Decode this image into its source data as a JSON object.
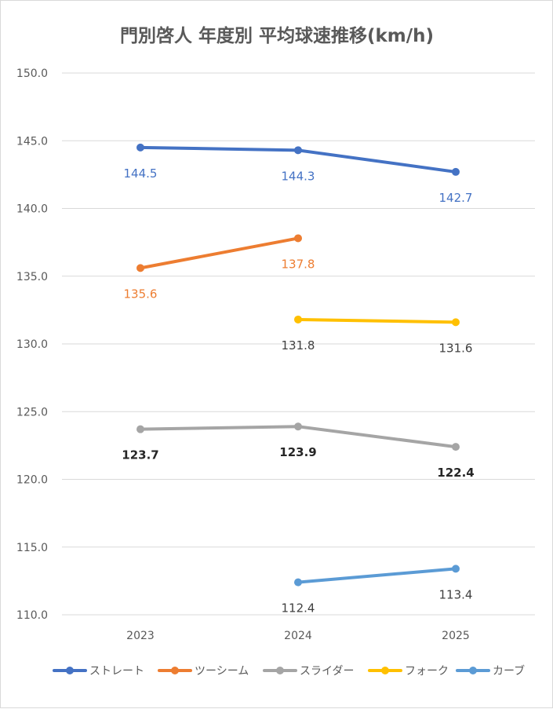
{
  "chart_data": {
    "type": "line",
    "title": "門別啓人 年度別 平均球速推移(km/h)",
    "x": [
      "2023",
      "2024",
      "2025"
    ],
    "ylim": [
      110.0,
      150.0
    ],
    "yticks": [
      "110.0",
      "115.0",
      "120.0",
      "125.0",
      "130.0",
      "135.0",
      "140.0",
      "145.0",
      "150.0"
    ],
    "grid": true,
    "legend_position": "bottom",
    "series": [
      {
        "name": "ストレート",
        "color": "#4472c4",
        "values": [
          144.5,
          144.3,
          142.7
        ],
        "labels": [
          "144.5",
          "144.3",
          "142.7"
        ],
        "label_color": "#4472c4",
        "label_bold": false
      },
      {
        "name": "ツーシーム",
        "color": "#ed7d31",
        "values": [
          135.6,
          137.8,
          null
        ],
        "labels": [
          "135.6",
          "137.8",
          ""
        ],
        "label_color": "#ed7d31",
        "label_bold": false
      },
      {
        "name": "スライダー",
        "color": "#a5a5a5",
        "values": [
          123.7,
          123.9,
          122.4
        ],
        "labels": [
          "123.7",
          "123.9",
          "122.4"
        ],
        "label_color": "#262626",
        "label_bold": true
      },
      {
        "name": "フォーク",
        "color": "#ffc000",
        "values": [
          null,
          131.8,
          131.6
        ],
        "labels": [
          "",
          "131.8",
          "131.6"
        ],
        "label_color": "#404040",
        "label_bold": false
      },
      {
        "name": "カーブ",
        "color": "#5b9bd5",
        "values": [
          null,
          112.4,
          113.4
        ],
        "labels": [
          "",
          "112.4",
          "113.4"
        ],
        "label_color": "#404040",
        "label_bold": false
      }
    ]
  }
}
